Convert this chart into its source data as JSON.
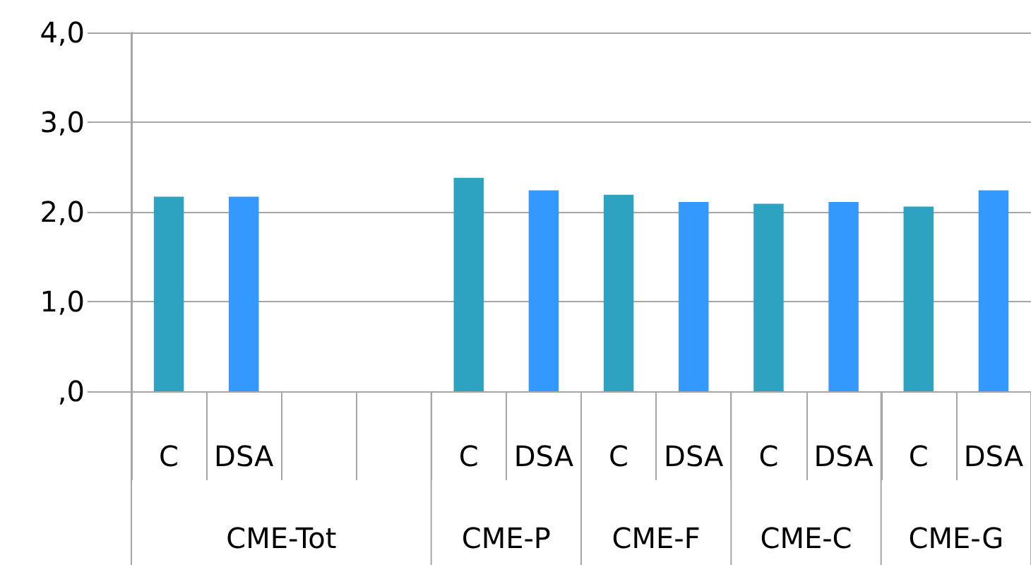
{
  "chart_data": {
    "type": "bar",
    "categories": [
      "C",
      "DSA",
      null,
      null,
      "C",
      "DSA",
      "C",
      "DSA",
      "C",
      "DSA",
      "C",
      "DSA"
    ],
    "values": [
      2.17,
      2.17,
      null,
      null,
      2.38,
      2.24,
      2.19,
      2.11,
      2.09,
      2.11,
      2.06,
      2.24
    ],
    "colors": [
      "#2ea3c1",
      "#3399ff",
      "#2ea3c1",
      "#3399ff",
      "#2ea3c1",
      "#3399ff",
      "#2ea3c1",
      "#3399ff",
      "#2ea3c1",
      "#3399ff",
      "#2ea3c1",
      "#3399ff"
    ],
    "annotations": [
      "CME-Tot",
      "CME-P",
      "CME-F",
      "CME-C",
      "CME-G"
    ],
    "ylim": [
      0,
      4
    ],
    "yticks": [
      {
        "value": 0,
        "label": ",0"
      },
      {
        "value": 1,
        "label": "1,0"
      },
      {
        "value": 2,
        "label": "2,0"
      },
      {
        "value": 3,
        "label": "3,0"
      },
      {
        "value": 4,
        "label": "4,0"
      }
    ],
    "grid": "y"
  }
}
